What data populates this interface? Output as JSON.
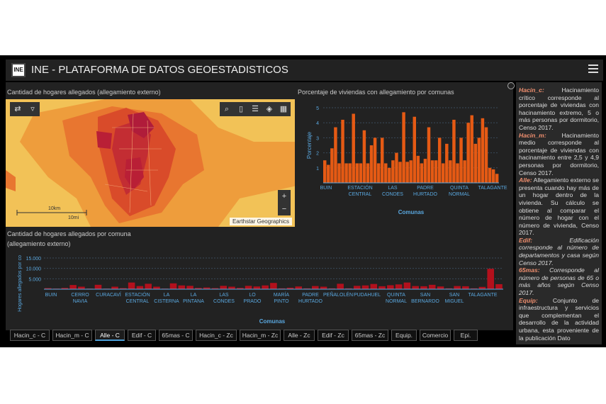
{
  "header": {
    "logo": "INE",
    "title": "INE - PLATAFORMA DE DATOS GEOESTADISTICOS"
  },
  "map": {
    "title": "Cantidad de hogares allegados (allegamiento externo)",
    "attribution": "Earthstar Geographics",
    "scale_km": "10km",
    "scale_mi": "10mi",
    "zoom_in": "+",
    "zoom_out": "−"
  },
  "chart_top": {
    "title": "Porcentaje de viviendas con allegamiento por comunas"
  },
  "chart_bottom": {
    "title_line1": "Cantidad de hogares allegados por comuna",
    "title_line2": "(allegamiento externo)"
  },
  "chart_data": [
    {
      "type": "bar",
      "title": "Porcentaje de viviendas con allegamiento por comunas",
      "xlabel": "Comunas",
      "ylabel": "Porcentaje",
      "ylim": [
        0,
        5
      ],
      "yticks": [
        1,
        2,
        3,
        4,
        5
      ],
      "tick_labels": [
        "BUIN",
        "ESTACIÓN CENTRAL",
        "LAS CONDES",
        "PADRE HURTADO",
        "QUINTA NORMAL",
        "TALAGANTE"
      ],
      "color": "#e55a14",
      "values": [
        1.5,
        1.2,
        2.3,
        3.7,
        1.3,
        4.2,
        1.3,
        1.3,
        4.6,
        1.3,
        1.3,
        3.5,
        1.3,
        2.5,
        3.0,
        1.3,
        3.0,
        1.3,
        1.0,
        1.5,
        2.0,
        1.4,
        4.7,
        1.4,
        1.5,
        4.4,
        1.8,
        1.3,
        1.6,
        3.7,
        1.5,
        1.5,
        3.0,
        1.3,
        2.6,
        1.5,
        4.2,
        1.3,
        3.0,
        1.5,
        4.0,
        4.5,
        2.6,
        3.0,
        4.3,
        3.7,
        1.0,
        0.9,
        0.6
      ]
    },
    {
      "type": "bar",
      "title": "Cantidad de hogares allegados por comuna (allegamiento externo)",
      "xlabel": "Comunas",
      "ylabel": "Hogares allegados por co",
      "ylim": [
        0,
        15000
      ],
      "yticks": [
        "5.000",
        "10.000",
        "15.000"
      ],
      "tick_labels": [
        "BUIN",
        "CERRO NAVIA",
        "CURACAVÍ",
        "ESTACIÓN CENTRAL",
        "LA CISTERNA",
        "LA PINTANA",
        "LAS CONDES",
        "LO PRADO",
        "MARÍA PINTO",
        "PADRE HURTADO",
        "PEÑALOLÉN",
        "PUDAHUEL",
        "QUINTA NORMAL",
        "SAN BERNARDO",
        "SAN MIGUEL",
        "TALAGANTE"
      ],
      "color": "#b3101c",
      "values": [
        500,
        300,
        600,
        2000,
        1200,
        300,
        2100,
        300,
        1200,
        500,
        3200,
        1500,
        2600,
        1200,
        300,
        2800,
        1800,
        1600,
        600,
        800,
        500,
        1600,
        1200,
        600,
        1600,
        1300,
        1800,
        3000,
        400,
        700,
        1300,
        400,
        1500,
        1200,
        400,
        2600,
        400,
        1600,
        1800,
        2500,
        1400,
        1900,
        2300,
        3200,
        1500,
        1400,
        2100,
        1300,
        400,
        1500,
        1400,
        400,
        1100,
        9800,
        2400
      ]
    }
  ],
  "tabs": [
    "Hacin_c - C",
    "Hacin_m - C",
    "Alle - C",
    "Edif - C",
    "65mas - C",
    "Hacin_c - Zc",
    "Hacin_m - Zc",
    "Alle - Zc",
    "Edif - Zc",
    "65mas - Zc",
    "Equip.",
    "Comercio",
    "Epi."
  ],
  "sidebar": [
    {
      "term": "Hacin_c:",
      "text": " Hacinamiento crítico corresponde al porcentaje de viviendas con hacinamiento extremo, 5 o más personas por dormitorio, Censo 2017."
    },
    {
      "term": "Hacin_m:",
      "text": " Hacinamiento medio corresponde al porcentaje de viviendas con hacinamiento entre 2,5 y 4,9 personas por dormitorio, Censo 2017."
    },
    {
      "term": "Alle:",
      "text": " Allegamiento externo se presenta cuando hay más de un hogar dentro de la vivienda. Su cálculo se obtiene al comparar el número de hogar con el número de vivienda, Censo 2017."
    },
    {
      "term": "Edif:",
      "text": " Edificación corresponde al número de departamentos y casa según Censo 2017."
    },
    {
      "term": "65mas:",
      "text": " Corresponde al número de personas de 65 o más años según Censo 2017."
    },
    {
      "term": "Equip:",
      "text": " Conjunto de infraestructura y servicios que complementan el desarrollo de la actividad urbana, esta proveniente de la publicación Dato"
    }
  ]
}
